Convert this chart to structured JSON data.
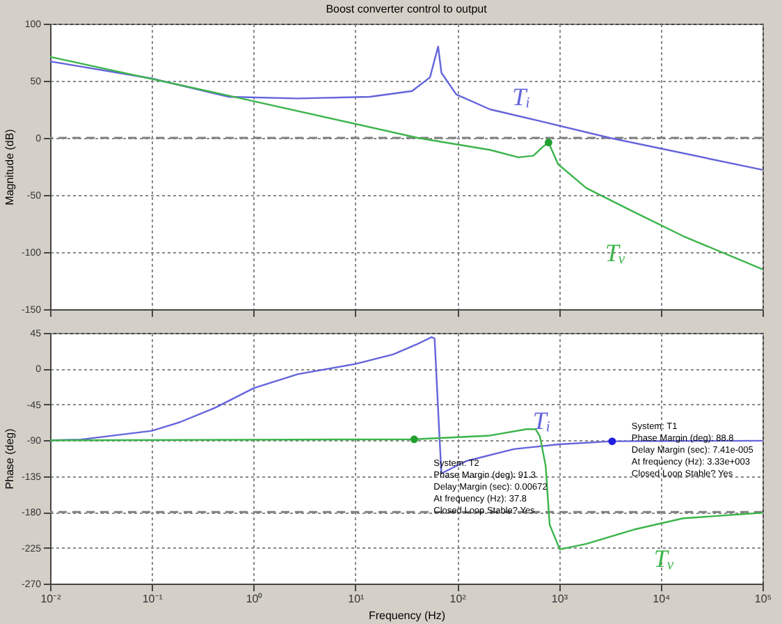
{
  "chart_data": [
    {
      "type": "line",
      "title": "Boost converter control to output",
      "ylabel": "Magnitude (dB)",
      "log": "x",
      "grid": true,
      "tick_labels": "y",
      "xlim": [
        0.01,
        100000
      ],
      "xticks": [
        {
          "value": 0.01,
          "label": null
        },
        {
          "value": 0.1,
          "label": null
        },
        {
          "value": 1,
          "label": null
        },
        {
          "value": 10,
          "label": null
        },
        {
          "value": 100,
          "label": null
        },
        {
          "value": 1000,
          "label": null
        },
        {
          "value": 10000,
          "label": null
        },
        {
          "value": 100000,
          "label": null
        }
      ],
      "ylim": [
        -150,
        100
      ],
      "yticks": [
        -150,
        -100,
        -50,
        0,
        50,
        100
      ],
      "ref_lines": [
        {
          "axis": "y",
          "value": 0,
          "color": "#808080",
          "line_style": "dashed"
        }
      ],
      "series": [
        {
          "name": "Tᵢ",
          "color": "#6464dc",
          "x": [
            0.01,
            0.1,
            0.57,
            2.7,
            13.8,
            36,
            54,
            65,
            70,
            98,
            210,
            630,
            3160,
            100000
          ],
          "values": [
            67,
            52,
            36,
            34.5,
            36,
            41,
            53,
            80,
            57,
            38,
            25,
            15,
            0,
            -28
          ]
        },
        {
          "name": "Tᵥ",
          "color": "#3cb44b",
          "x": [
            0.01,
            0.57,
            41,
            210,
            400,
            560,
            690,
            790,
            850,
            980,
            1860,
            5500,
            16600,
            100000
          ],
          "values": [
            71,
            37,
            0,
            -10.5,
            -17,
            -15.6,
            -8,
            -4,
            -10.5,
            -23,
            -44,
            -65,
            -86,
            -115
          ]
        },
        {
          "type": "scatter",
          "color": "#22a030",
          "x": [
            790
          ],
          "values": [
            -4
          ]
        }
      ]
    },
    {
      "type": "line",
      "xlabel": "Frequency  (Hz)",
      "ylabel": "Phase (deg)",
      "log": "x",
      "grid": true,
      "xlim": [
        0.01,
        100000
      ],
      "xticks": [
        {
          "value": 0.01,
          "label": "10⁻²"
        },
        {
          "value": 0.1,
          "label": "10⁻¹"
        },
        {
          "value": 1,
          "label": "10⁰"
        },
        {
          "value": 10,
          "label": "10¹"
        },
        {
          "value": 100,
          "label": "10²"
        },
        {
          "value": 1000,
          "label": "10³"
        },
        {
          "value": 10000,
          "label": "10⁴"
        },
        {
          "value": 100000,
          "label": "10⁵"
        }
      ],
      "ylim": [
        -270,
        45
      ],
      "yticks": [
        -270,
        -225,
        -180,
        -135,
        -90,
        -45,
        0,
        45
      ],
      "ref_lines": [
        {
          "axis": "y",
          "value": -180,
          "color": "#808080",
          "line_style": "dashed"
        }
      ],
      "series": [
        {
          "name": "Tᵢ",
          "color": "#6464dc",
          "x": [
            0.01,
            0.02,
            0.1,
            0.19,
            0.42,
            1,
            2.7,
            10,
            23.5,
            40,
            56,
            60,
            67,
            70,
            123,
            360,
            1000,
            3300,
            100000
          ],
          "values": [
            -90,
            -89,
            -78,
            -67,
            -49,
            -24.5,
            -7,
            6,
            18,
            30.6,
            39.7,
            38,
            -86,
            -131.5,
            -116,
            -101,
            -95,
            -91.2,
            -90.5
          ]
        },
        {
          "name": "Tᵥ",
          "color": "#3cb44b",
          "x": [
            0.01,
            37.8,
            210,
            480,
            590,
            650,
            740,
            810,
            1020,
            1860,
            5500,
            16600,
            100000
          ],
          "values": [
            -90,
            -88.7,
            -84,
            -76,
            -76,
            -85,
            -122,
            -196,
            -227,
            -220,
            -202,
            -188,
            -181
          ]
        },
        {
          "type": "scatter",
          "color": "#22a030",
          "x": [
            37.8
          ],
          "values": [
            -88.7
          ]
        },
        {
          "type": "scatter",
          "color": "#2020e0",
          "x": [
            3330
          ],
          "values": [
            -91.2
          ]
        }
      ],
      "annotations": [
        {
          "text": "System: T2\nPhase Margin (deg): 91.3\nDelay Margin (sec): 0.00672\nAt frequency (Hz): 37.8\nClosed Loop Stable? Yes",
          "x": 37.8,
          "y": -88.7
        },
        {
          "text": "System: T1\nPhase Margin (deg): 88.8\nDelay Margin (sec): 7.41e-005\nAt frequency (Hz): 3.33e+003\nClosed Loop Stable? Yes",
          "x": 3330,
          "y": -91.2
        }
      ]
    }
  ]
}
